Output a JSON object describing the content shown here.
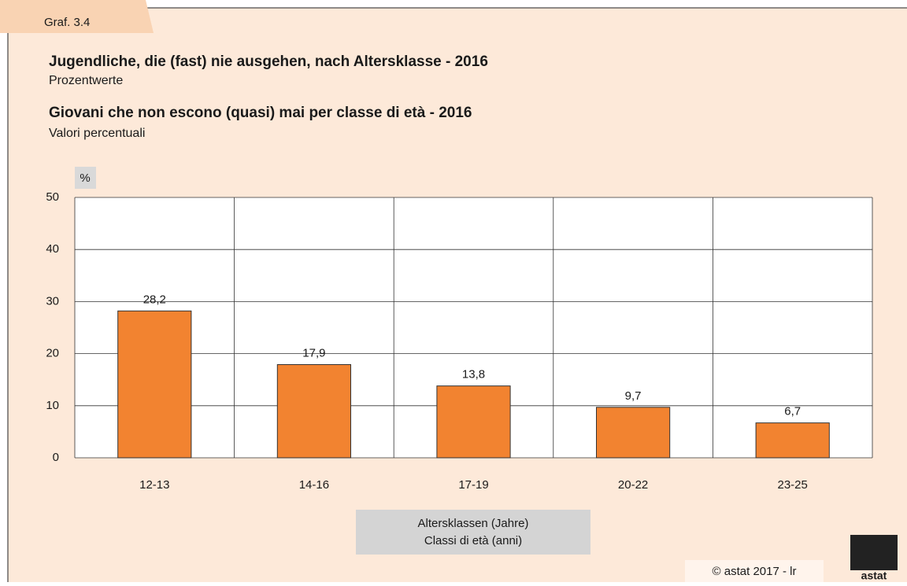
{
  "chart_data": {
    "type": "bar",
    "label": "Graf. 3.4",
    "title": "Jugendliche, die (fast) nie ausgehen, nach Altersklasse - 2016",
    "subtitle": "Prozentwerte",
    "title_it": "Giovani che non escono (quasi) mai per classe di età - 2016",
    "subtitle_it": "Valori percentuali",
    "y_unit": "%",
    "categories": [
      "12-13",
      "14-16",
      "17-19",
      "20-22",
      "23-25"
    ],
    "values": [
      28.2,
      17.9,
      13.8,
      9.7,
      6.7
    ],
    "value_labels": [
      "28,2",
      "17,9",
      "13,8",
      "9,7",
      "6,7"
    ],
    "color": "#f28330",
    "ylim": [
      0,
      50
    ],
    "yticks": [
      0,
      10,
      20,
      30,
      40,
      50
    ],
    "grid": true,
    "xlabel": [
      "Altersklassen (Jahre)",
      "Classi di età (anni)"
    ],
    "source": "© astat 2017 - lr",
    "logo": "astat"
  }
}
